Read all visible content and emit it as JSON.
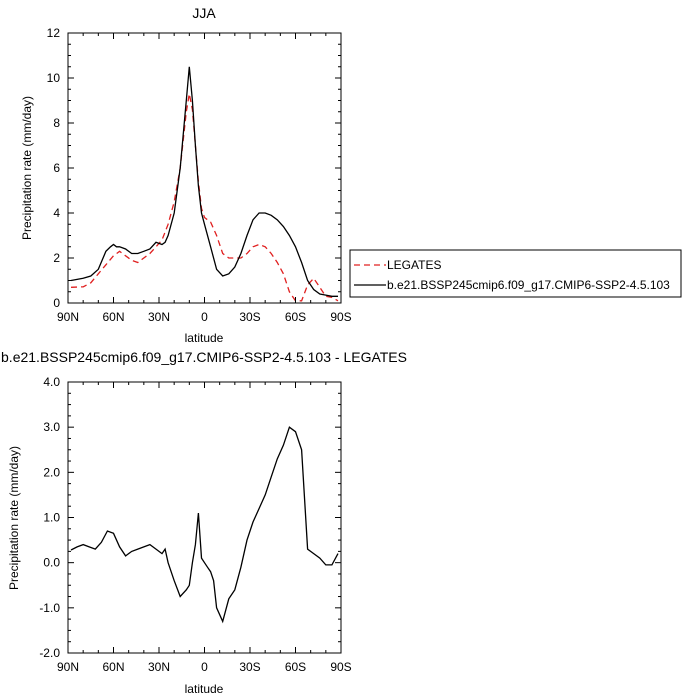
{
  "chart_data": [
    {
      "type": "line",
      "title": "JJA",
      "xlabel": "latitude",
      "ylabel": "Precipitation rate (mm/day)",
      "xlim": [
        90,
        -90
      ],
      "ylim": [
        0,
        12
      ],
      "x_ticks": [
        {
          "value": 90,
          "label": "90N"
        },
        {
          "value": 60,
          "label": "60N"
        },
        {
          "value": 30,
          "label": "30N"
        },
        {
          "value": 0,
          "label": "0"
        },
        {
          "value": -30,
          "label": "30S"
        },
        {
          "value": -60,
          "label": "60S"
        },
        {
          "value": -90,
          "label": "90S"
        }
      ],
      "y_ticks": [
        {
          "value": 0,
          "label": "0"
        },
        {
          "value": 2,
          "label": "2"
        },
        {
          "value": 4,
          "label": "4"
        },
        {
          "value": 6,
          "label": "6"
        },
        {
          "value": 8,
          "label": "8"
        },
        {
          "value": 10,
          "label": "10"
        },
        {
          "value": 12,
          "label": "12"
        }
      ],
      "grid": false,
      "legend_position": "right",
      "series": [
        {
          "name": "LEGATES",
          "color": "#e02020",
          "dash": true,
          "x": [
            88,
            80,
            75,
            70,
            65,
            60,
            56,
            52,
            48,
            44,
            40,
            36,
            32,
            28,
            24,
            20,
            16,
            12,
            10,
            8,
            6,
            4,
            2,
            0,
            -2,
            -4,
            -8,
            -12,
            -16,
            -20,
            -24,
            -28,
            -32,
            -36,
            -40,
            -44,
            -48,
            -52,
            -56,
            -60,
            -64,
            -68,
            -72,
            -76,
            -80,
            -84,
            -88
          ],
          "y": [
            0.7,
            0.72,
            0.9,
            1.3,
            1.7,
            2.1,
            2.3,
            2.1,
            1.9,
            1.8,
            2.0,
            2.2,
            2.5,
            2.8,
            3.5,
            4.5,
            6.0,
            8.5,
            9.3,
            8.6,
            7.0,
            5.4,
            4.2,
            3.8,
            3.7,
            3.6,
            3.0,
            2.2,
            2.0,
            2.0,
            2.0,
            2.2,
            2.5,
            2.6,
            2.5,
            2.2,
            1.8,
            1.3,
            0.5,
            0.1,
            0.1,
            0.8,
            1.1,
            0.7,
            0.3,
            0.25,
            0.1
          ]
        },
        {
          "name": "b.e21.BSSP245cmip6.f09_g17.CMIP6-SSP2-4.5.103",
          "color": "#000000",
          "dash": false,
          "x": [
            88,
            80,
            75,
            70,
            65,
            62,
            60,
            58,
            56,
            52,
            48,
            44,
            40,
            36,
            32,
            28,
            26,
            24,
            20,
            16,
            12,
            10,
            8,
            6,
            4,
            2,
            0,
            -4,
            -8,
            -12,
            -16,
            -20,
            -24,
            -28,
            -32,
            -36,
            -40,
            -44,
            -48,
            -52,
            -56,
            -60,
            -64,
            -68,
            -72,
            -76,
            -80,
            -84,
            -88
          ],
          "y": [
            1.0,
            1.1,
            1.2,
            1.5,
            2.3,
            2.5,
            2.6,
            2.5,
            2.5,
            2.4,
            2.2,
            2.2,
            2.3,
            2.4,
            2.7,
            2.6,
            2.7,
            3.0,
            4.0,
            6.0,
            9.0,
            10.5,
            9.0,
            7.0,
            5.2,
            4.0,
            3.5,
            2.5,
            1.5,
            1.2,
            1.3,
            1.6,
            2.2,
            3.0,
            3.7,
            4.0,
            4.0,
            3.9,
            3.7,
            3.4,
            3.0,
            2.5,
            1.8,
            1.0,
            0.6,
            0.4,
            0.35,
            0.3,
            0.3
          ]
        }
      ]
    },
    {
      "type": "line",
      "title": "b.e21.BSSP245cmip6.f09_g17.CMIP6-SSP2-4.5.103 - LEGATES",
      "xlabel": "latitude",
      "ylabel": "Precipitation rate (mm/day)",
      "xlim": [
        90,
        -90
      ],
      "ylim": [
        -2,
        4
      ],
      "x_ticks": [
        {
          "value": 90,
          "label": "90N"
        },
        {
          "value": 60,
          "label": "60N"
        },
        {
          "value": 30,
          "label": "30N"
        },
        {
          "value": 0,
          "label": "0"
        },
        {
          "value": -30,
          "label": "30S"
        },
        {
          "value": -60,
          "label": "60S"
        },
        {
          "value": -90,
          "label": "90S"
        }
      ],
      "y_ticks": [
        {
          "value": -2,
          "label": "-2.0"
        },
        {
          "value": -1,
          "label": "-1.0"
        },
        {
          "value": 0,
          "label": "0.0"
        },
        {
          "value": 1,
          "label": "1.0"
        },
        {
          "value": 2,
          "label": "2.0"
        },
        {
          "value": 3,
          "label": "3.0"
        },
        {
          "value": 4,
          "label": "4.0"
        }
      ],
      "grid": false,
      "series": [
        {
          "color": "#000000",
          "dash": false,
          "x": [
            88,
            84,
            80,
            76,
            72,
            68,
            64,
            60,
            56,
            52,
            48,
            44,
            40,
            36,
            32,
            28,
            26,
            24,
            20,
            16,
            12,
            10,
            8,
            6,
            4,
            2,
            0,
            -2,
            -4,
            -6,
            -8,
            -12,
            -16,
            -20,
            -24,
            -28,
            -32,
            -36,
            -40,
            -44,
            -48,
            -52,
            -56,
            -60,
            -64,
            -68,
            -72,
            -76,
            -80,
            -84,
            -88
          ],
          "y": [
            0.28,
            0.35,
            0.4,
            0.35,
            0.3,
            0.45,
            0.7,
            0.65,
            0.35,
            0.15,
            0.25,
            0.3,
            0.35,
            0.4,
            0.3,
            0.2,
            0.3,
            0.0,
            -0.4,
            -0.75,
            -0.6,
            -0.5,
            0.0,
            0.4,
            1.1,
            0.1,
            0.0,
            -0.1,
            -0.2,
            -0.4,
            -1.0,
            -1.3,
            -0.8,
            -0.6,
            -0.1,
            0.5,
            0.9,
            1.2,
            1.5,
            1.9,
            2.3,
            2.6,
            3.0,
            2.9,
            2.5,
            0.3,
            0.2,
            0.1,
            -0.05,
            -0.05,
            0.2
          ]
        }
      ]
    }
  ]
}
